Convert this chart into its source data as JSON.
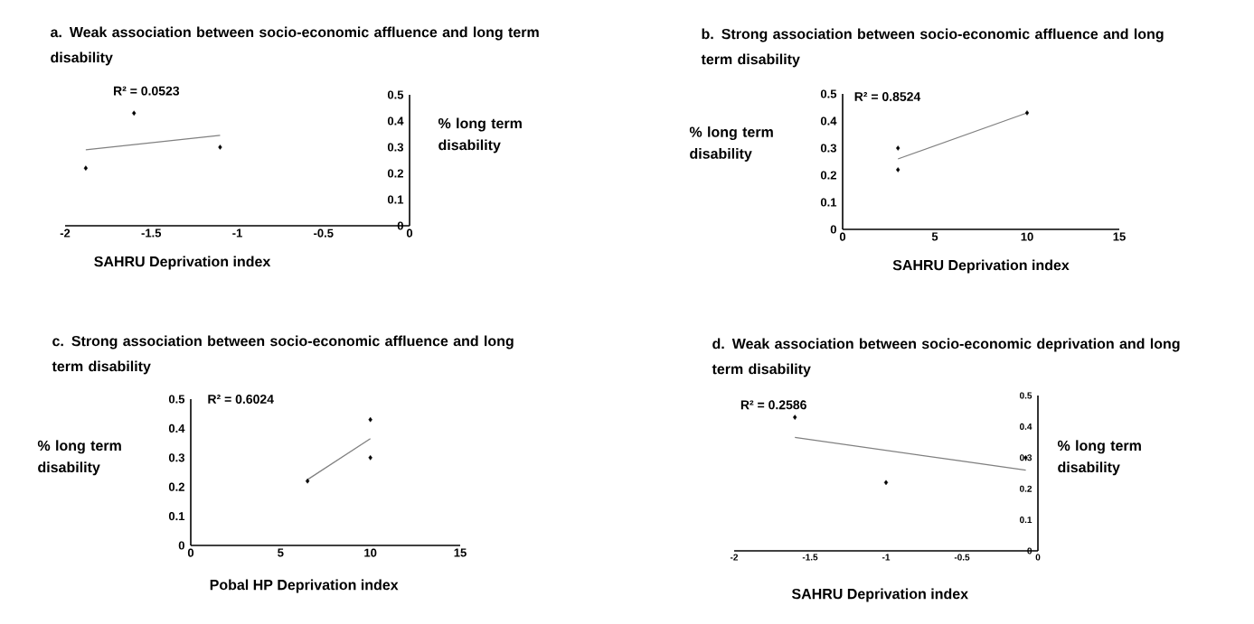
{
  "chart_data": [
    {
      "type": "scatter",
      "title": "a.  Weak association between socio-economic affluence and long term disability",
      "xlabel": "SAHRU Deprivation index",
      "ylabel": "% long term disability",
      "annotations": [
        "R² = 0.0523"
      ],
      "xlim": [
        -2,
        0
      ],
      "ylim": [
        0,
        0.5
      ],
      "xticks": [
        -2,
        -1.5,
        -1,
        -0.5,
        0
      ],
      "yticks": [
        0,
        0.1,
        0.2,
        0.3,
        0.4,
        0.5
      ],
      "series": [
        {
          "color": "#000000",
          "marker": "diamond",
          "x": [
            -1.88,
            -1.6,
            -1.1
          ],
          "values": [
            0.22,
            0.43,
            0.3
          ]
        },
        {
          "type": "line",
          "color": "#808080",
          "marker": "none",
          "x": [
            -1.88,
            -1.1
          ],
          "values": [
            0.29,
            0.345
          ]
        }
      ]
    },
    {
      "type": "scatter",
      "title": "b. Strong association between socio-economic affluence and long term disability",
      "xlabel": "SAHRU Deprivation index",
      "ylabel": "% long term disability",
      "annotations": [
        "R² = 0.8524"
      ],
      "xlim": [
        0,
        15
      ],
      "ylim": [
        0,
        0.5
      ],
      "xticks": [
        0,
        5,
        10,
        15
      ],
      "yticks": [
        0,
        0.1,
        0.2,
        0.3,
        0.4,
        0.5
      ],
      "series": [
        {
          "color": "#000000",
          "marker": "diamond",
          "x": [
            3,
            3,
            10
          ],
          "values": [
            0.3,
            0.22,
            0.43
          ]
        },
        {
          "type": "line",
          "color": "#808080",
          "marker": "none",
          "x": [
            3,
            10
          ],
          "values": [
            0.26,
            0.43
          ]
        }
      ]
    },
    {
      "type": "scatter",
      "title": "c. Strong association between socio-economic affluence and long term disability",
      "xlabel": "Pobal HP Deprivation index",
      "ylabel": "% long term disability",
      "annotations": [
        "R² = 0.6024"
      ],
      "xlim": [
        0,
        15
      ],
      "ylim": [
        0,
        0.5
      ],
      "xticks": [
        0,
        5,
        10,
        15
      ],
      "yticks": [
        0,
        0.1,
        0.2,
        0.3,
        0.4,
        0.5
      ],
      "series": [
        {
          "color": "#000000",
          "marker": "diamond",
          "x": [
            6.5,
            10,
            10
          ],
          "values": [
            0.22,
            0.43,
            0.3
          ]
        },
        {
          "type": "line",
          "color": "#808080",
          "marker": "none",
          "x": [
            6.5,
            10
          ],
          "values": [
            0.225,
            0.365
          ]
        }
      ]
    },
    {
      "type": "scatter",
      "title": "d.  Weak association between socio-economic deprivation and long term disability",
      "xlabel": "SAHRU Deprivation index",
      "ylabel": "% long term disability",
      "annotations": [
        "R² = 0.2586"
      ],
      "xlim": [
        -2,
        0
      ],
      "ylim": [
        0,
        0.5
      ],
      "xticks": [
        -2,
        -1.5,
        -1,
        -0.5,
        0
      ],
      "yticks": [
        0,
        0.1,
        0.2,
        0.3,
        0.4,
        0.5
      ],
      "series": [
        {
          "color": "#000000",
          "marker": "diamond",
          "x": [
            -1.6,
            -1,
            -0.08
          ],
          "values": [
            0.43,
            0.22,
            0.3
          ]
        },
        {
          "type": "line",
          "color": "#808080",
          "marker": "none",
          "x": [
            -1.6,
            -0.08
          ],
          "values": [
            0.365,
            0.26
          ]
        }
      ]
    }
  ]
}
